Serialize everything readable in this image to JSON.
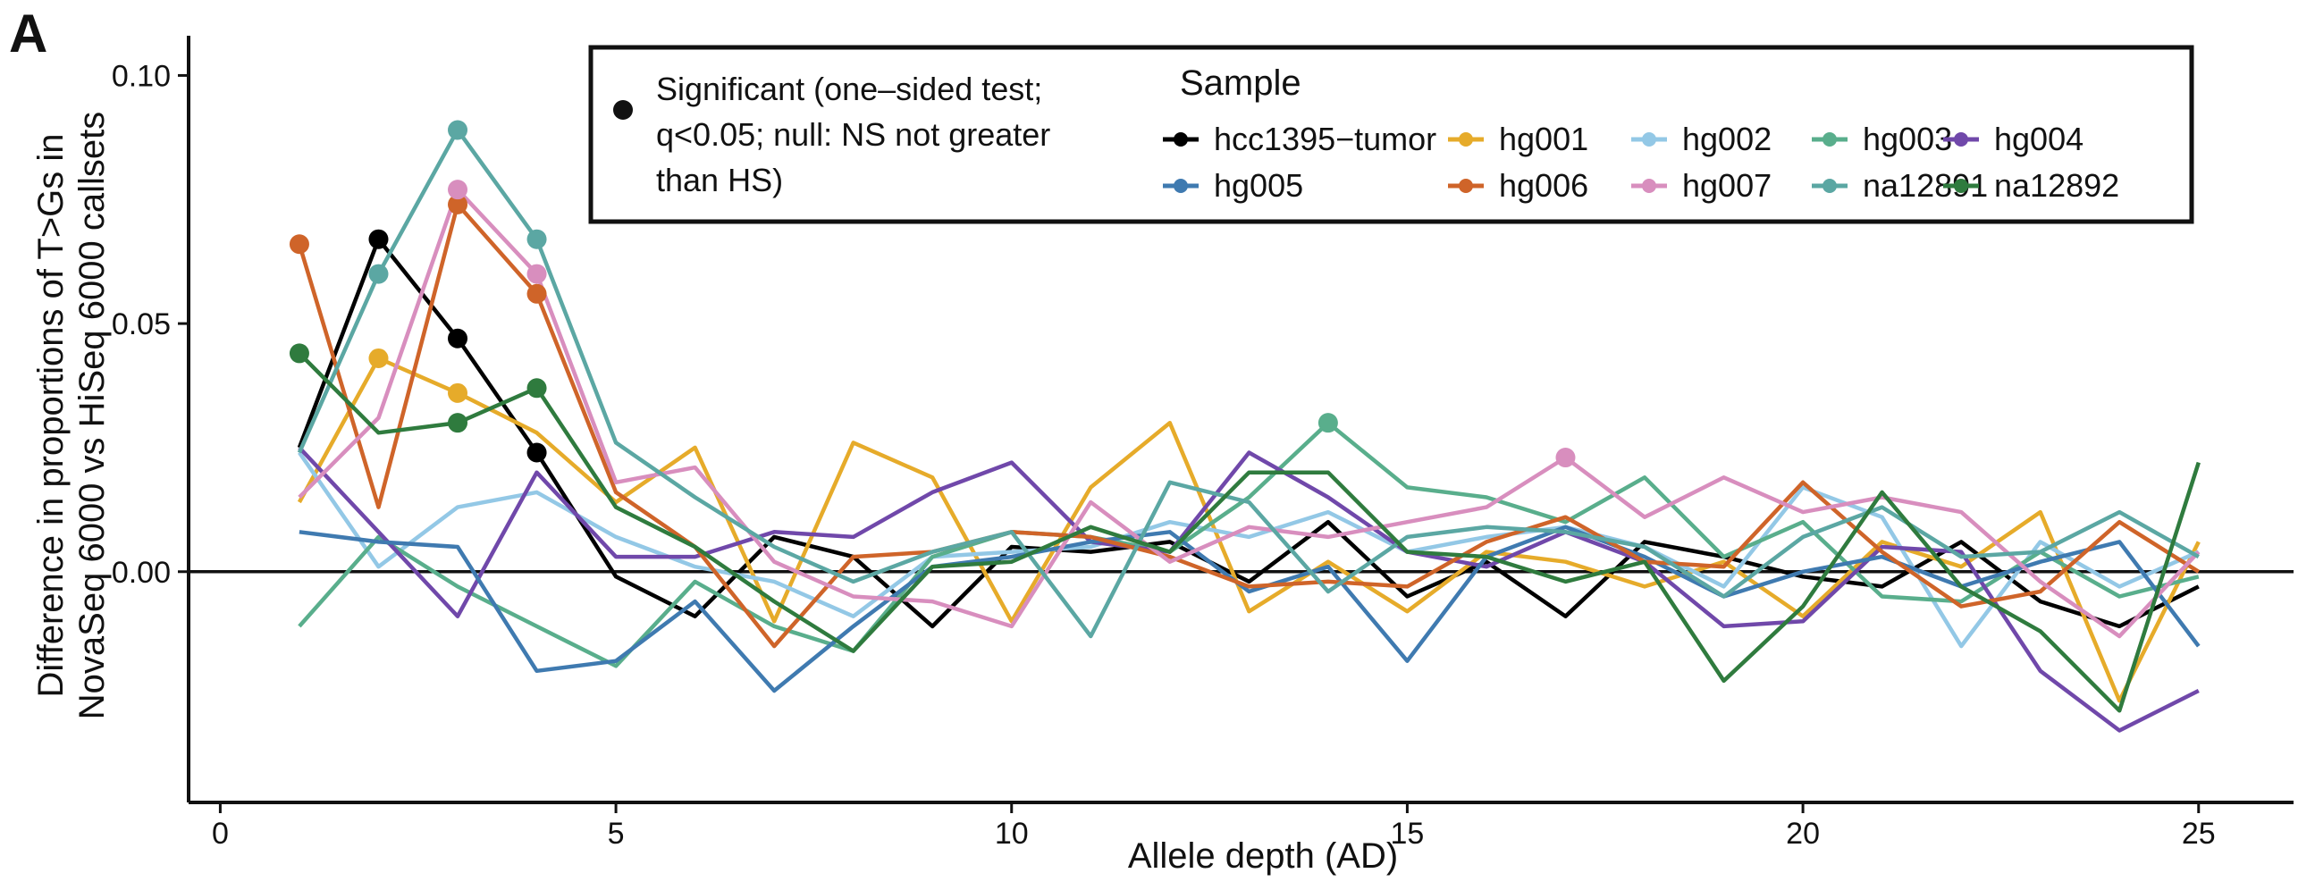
{
  "panel_label": "A",
  "chart_data": {
    "type": "line",
    "xlabel": "Allele depth (AD)",
    "ylabel": [
      "Difference in proportions of T>Gs in",
      "NovaSeq 6000 vs HiSeq 6000 callsets"
    ],
    "xlim": [
      -0.4,
      26.2
    ],
    "ylim": [
      -0.0465,
      0.108
    ],
    "x_ticks": [
      0,
      5,
      10,
      15,
      20,
      25
    ],
    "y_ticks": [
      0.0,
      0.05,
      0.1
    ],
    "y_tick_labels": [
      "0.00",
      "0.05",
      "0.10"
    ],
    "reference_line_y": 0,
    "grid": false,
    "legend_position": "top",
    "significance_legend": [
      "Significant (one–sided test;",
      "q<0.05; null: NS not greater",
      "than HS)"
    ],
    "legend_title": "Sample",
    "x": [
      1,
      2,
      3,
      4,
      5,
      6,
      7,
      8,
      9,
      10,
      11,
      12,
      13,
      14,
      15,
      16,
      17,
      18,
      19,
      20,
      21,
      22,
      23,
      24,
      25
    ],
    "series": [
      {
        "name": "hcc1395−tumor",
        "color": "#000000",
        "values": [
          0.025,
          0.067,
          0.047,
          0.024,
          -0.001,
          -0.009,
          0.007,
          0.003,
          -0.011,
          0.005,
          0.004,
          0.006,
          -0.002,
          0.01,
          -0.005,
          0.002,
          -0.009,
          0.006,
          0.003,
          -0.001,
          -0.003,
          0.006,
          -0.006,
          -0.011,
          -0.003
        ],
        "significant_x": [
          2,
          3,
          4
        ]
      },
      {
        "name": "hg001",
        "color": "#E6AB2A",
        "values": [
          0.014,
          0.043,
          0.036,
          0.028,
          0.014,
          0.025,
          -0.01,
          0.026,
          0.019,
          -0.01,
          0.017,
          0.03,
          -0.008,
          0.002,
          -0.008,
          0.004,
          0.002,
          -0.003,
          0.002,
          -0.009,
          0.006,
          0.001,
          0.012,
          -0.026,
          0.006
        ],
        "significant_x": [
          2,
          3
        ]
      },
      {
        "name": "hg002",
        "color": "#93C8E6",
        "values": [
          0.024,
          0.001,
          0.013,
          0.016,
          0.007,
          0.001,
          -0.002,
          -0.009,
          0.003,
          0.004,
          0.005,
          0.01,
          0.007,
          0.012,
          0.004,
          0.007,
          0.009,
          0.005,
          -0.003,
          0.017,
          0.011,
          -0.015,
          0.006,
          -0.003,
          0.004
        ],
        "significant_x": []
      },
      {
        "name": "hg003",
        "color": "#59AE8C",
        "values": [
          -0.011,
          0.007,
          -0.003,
          -0.011,
          -0.019,
          -0.002,
          -0.011,
          -0.016,
          0.003,
          0.008,
          0.007,
          0.004,
          0.015,
          0.03,
          0.017,
          0.015,
          0.01,
          0.019,
          0.003,
          0.01,
          -0.005,
          -0.006,
          0.004,
          -0.005,
          -0.001
        ],
        "significant_x": [
          14
        ]
      },
      {
        "name": "hg004",
        "color": "#7048AA",
        "values": [
          0.025,
          0.008,
          -0.009,
          0.02,
          0.003,
          0.003,
          0.008,
          0.007,
          0.016,
          0.022,
          0.006,
          0.004,
          0.024,
          0.015,
          0.004,
          0.001,
          0.008,
          0.002,
          -0.011,
          -0.01,
          0.005,
          0.004,
          -0.02,
          -0.032,
          -0.024
        ],
        "significant_x": []
      },
      {
        "name": "hg005",
        "color": "#3F7AB0",
        "values": [
          0.008,
          0.006,
          0.005,
          -0.02,
          -0.018,
          -0.006,
          -0.024,
          -0.011,
          0.001,
          0.003,
          0.006,
          0.008,
          -0.004,
          0.001,
          -0.018,
          0.003,
          0.009,
          0.003,
          -0.005,
          0.0,
          0.003,
          -0.003,
          0.002,
          0.006,
          -0.015
        ],
        "significant_x": []
      },
      {
        "name": "hg006",
        "color": "#CF6429",
        "values": [
          0.066,
          0.013,
          0.074,
          0.056,
          0.016,
          0.005,
          -0.015,
          0.003,
          0.004,
          0.008,
          0.007,
          0.003,
          -0.003,
          -0.002,
          -0.003,
          0.006,
          0.011,
          0.002,
          0.001,
          0.018,
          0.004,
          -0.007,
          -0.004,
          0.01,
          0.0
        ],
        "significant_x": [
          1,
          3,
          4
        ]
      },
      {
        "name": "hg007",
        "color": "#D88EBE",
        "values": [
          0.015,
          0.031,
          0.077,
          0.06,
          0.018,
          0.021,
          0.002,
          -0.005,
          -0.006,
          -0.011,
          0.014,
          0.002,
          0.009,
          0.007,
          0.01,
          0.013,
          0.023,
          0.011,
          0.019,
          0.012,
          0.015,
          0.012,
          -0.002,
          -0.013,
          0.004
        ],
        "significant_x": [
          3,
          4,
          17
        ]
      },
      {
        "name": "na12891",
        "color": "#5BA7A3",
        "values": [
          0.024,
          0.06,
          0.089,
          0.067,
          0.026,
          0.015,
          0.005,
          -0.002,
          0.004,
          0.008,
          -0.013,
          0.018,
          0.014,
          -0.004,
          0.007,
          0.009,
          0.008,
          0.005,
          -0.005,
          0.007,
          0.013,
          0.003,
          0.004,
          0.012,
          0.003
        ],
        "significant_x": [
          2,
          3,
          4
        ]
      },
      {
        "name": "na12892",
        "color": "#2F7B3E",
        "values": [
          0.044,
          0.028,
          0.03,
          0.037,
          0.013,
          0.005,
          -0.006,
          -0.016,
          0.001,
          0.002,
          0.009,
          0.004,
          0.02,
          0.02,
          0.004,
          0.003,
          -0.002,
          0.002,
          -0.022,
          -0.007,
          0.016,
          -0.003,
          -0.012,
          -0.028,
          0.022
        ],
        "significant_x": [
          1,
          3,
          4
        ]
      }
    ]
  }
}
